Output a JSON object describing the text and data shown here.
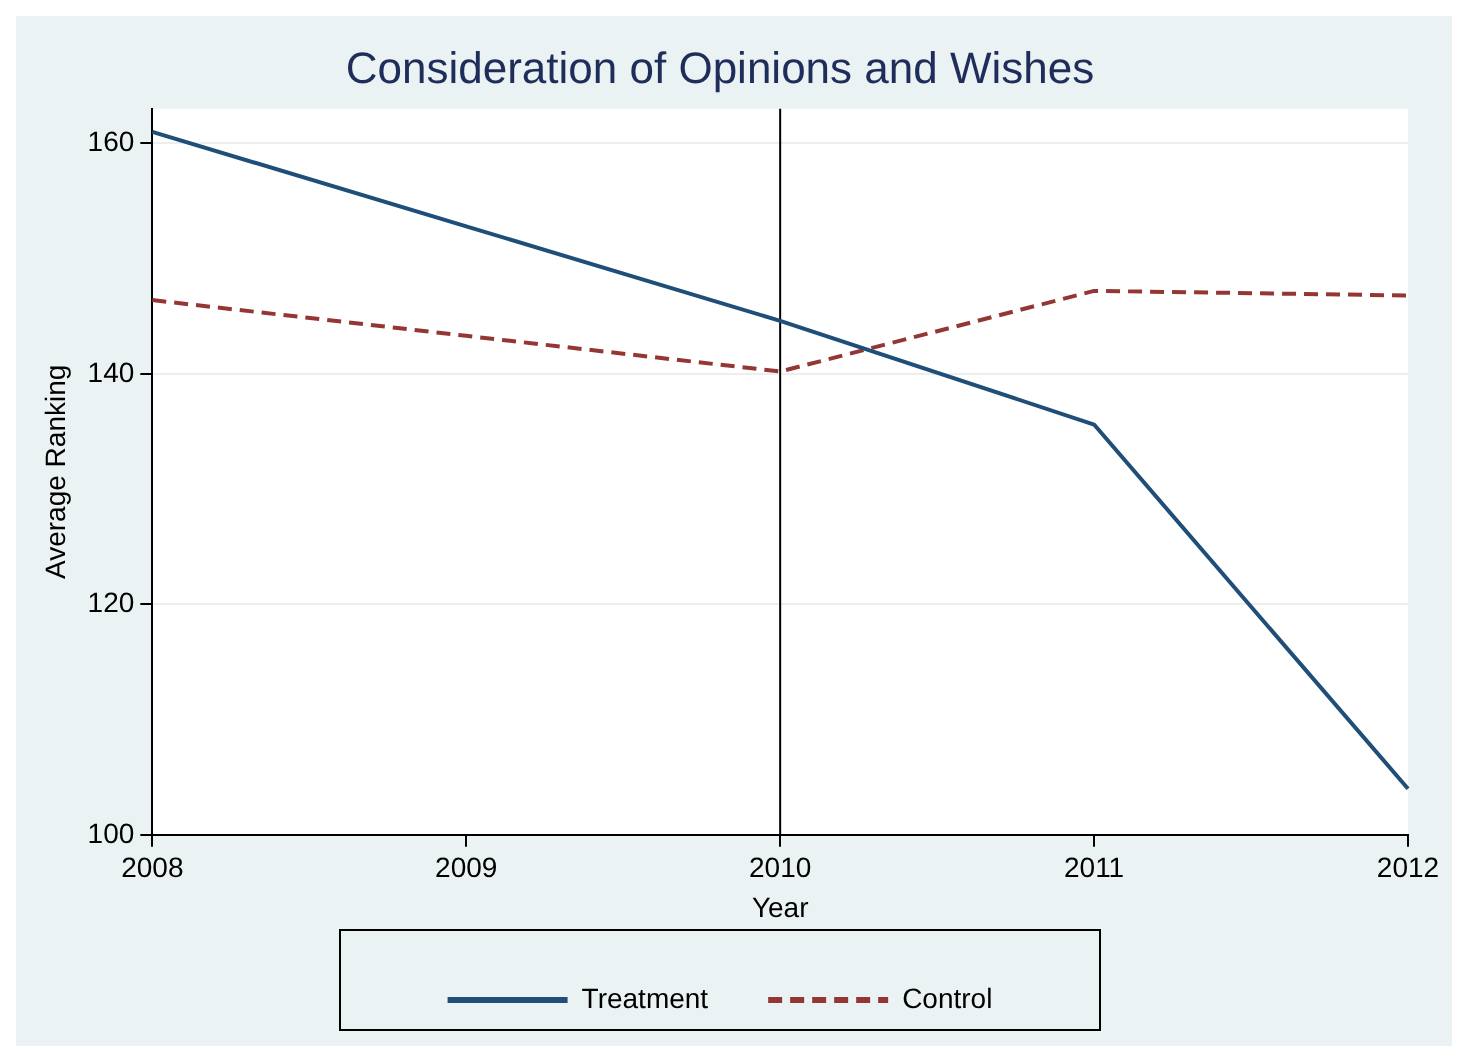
{
  "chart_data": {
    "type": "line",
    "title": "Consideration of Opinions and Wishes",
    "xlabel": "Year",
    "ylabel": "Average Ranking",
    "x": [
      2008,
      2009,
      2010,
      2011,
      2012
    ],
    "series": [
      {
        "name": "Treatment",
        "color": "#1f4e79",
        "values": [
          161,
          152.8,
          144.6,
          135.6,
          104
        ],
        "line_style": "solid"
      },
      {
        "name": "Control",
        "color": "#943634",
        "values": [
          146.4,
          143.3,
          140.2,
          147.2,
          146.8
        ],
        "line_style": "dashed"
      }
    ],
    "xlim": [
      2008,
      2012
    ],
    "xticks": [
      2008,
      2009,
      2010,
      2011,
      2012
    ],
    "ylim": [
      100,
      163
    ],
    "yticks": [
      100,
      120,
      140,
      160
    ],
    "ref_lines": [
      {
        "axis": "x",
        "value": 2010,
        "color": "#000000"
      }
    ],
    "grid": "y",
    "legend": "bottom",
    "marker": "none"
  }
}
